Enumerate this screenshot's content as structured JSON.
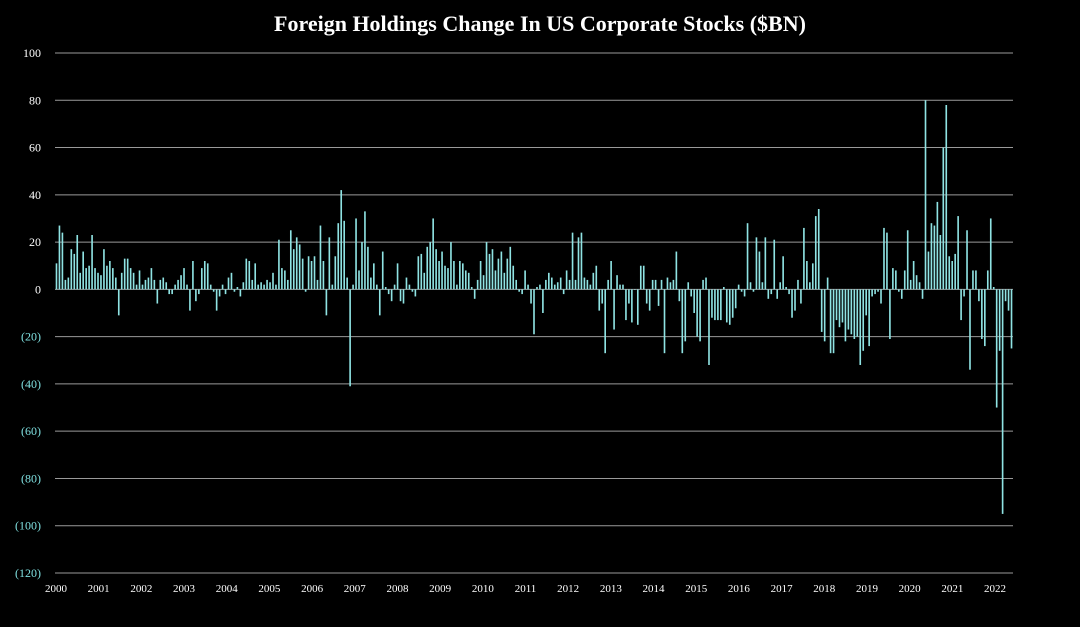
{
  "chart_data": {
    "type": "bar",
    "title": "Foreign Holdings Change In US Corporate Stocks ($BN)",
    "xlabel": "",
    "ylabel": "",
    "ylim": [
      -120,
      100
    ],
    "grid": true,
    "legend": "none",
    "colors": {
      "background": "#000000",
      "bar": "#8fe3e3",
      "grid": "#9a9a9a",
      "positive_tick": "#ffffff",
      "negative_tick": "#7fe0e0"
    },
    "y_ticks": [
      {
        "value": 100,
        "label": "100"
      },
      {
        "value": 80,
        "label": "80"
      },
      {
        "value": 60,
        "label": "60"
      },
      {
        "value": 40,
        "label": "40"
      },
      {
        "value": 20,
        "label": "20"
      },
      {
        "value": 0,
        "label": "0"
      },
      {
        "value": -20,
        "label": "(20)"
      },
      {
        "value": -40,
        "label": "(40)"
      },
      {
        "value": -60,
        "label": "(60)"
      },
      {
        "value": -80,
        "label": "(80)"
      },
      {
        "value": -100,
        "label": "(100)"
      },
      {
        "value": -120,
        "label": "(120)"
      }
    ],
    "x_ticks": [
      "2000",
      "2001",
      "2002",
      "2003",
      "2004",
      "2005",
      "2006",
      "2007",
      "2008",
      "2009",
      "2010",
      "2011",
      "2012",
      "2013",
      "2014",
      "2015",
      "2016",
      "2017",
      "2018",
      "2019",
      "2020",
      "2021",
      "2022"
    ],
    "x_start": "2000-01",
    "frequency": "monthly",
    "values": [
      11,
      27,
      24,
      4,
      5,
      17,
      15,
      23,
      7,
      16,
      9,
      10,
      23,
      9,
      7,
      6,
      17,
      10,
      12,
      9,
      5,
      -11,
      7,
      13,
      13,
      9,
      7,
      2,
      8,
      2,
      4,
      5,
      9,
      4,
      -6,
      4,
      5,
      3,
      -2,
      -2,
      2,
      4,
      6,
      9,
      2,
      -9,
      12,
      -5,
      -2,
      9,
      12,
      11,
      2,
      -1,
      -9,
      -3,
      2,
      -2,
      5,
      7,
      -1,
      1,
      -3,
      3,
      13,
      12,
      4,
      11,
      2,
      3,
      2,
      4,
      3,
      7,
      2,
      21,
      9,
      8,
      4,
      25,
      17,
      22,
      19,
      13,
      -1,
      14,
      12,
      14,
      4,
      27,
      12,
      -11,
      22,
      2,
      14,
      28,
      42,
      29,
      5,
      -41,
      2,
      30,
      8,
      20,
      33,
      18,
      5,
      11,
      2,
      -11,
      16,
      1,
      -2,
      -5,
      2,
      11,
      -5,
      -6,
      5,
      2,
      -1,
      -3,
      14,
      15,
      7,
      18,
      20,
      30,
      17,
      12,
      16,
      10,
      9,
      20,
      12,
      2,
      12,
      11,
      8,
      7,
      1,
      -4,
      4,
      12,
      6,
      20,
      15,
      17,
      8,
      13,
      16,
      7,
      13,
      18,
      10,
      4,
      -1,
      -2,
      8,
      2,
      -6,
      -19,
      1,
      2,
      -10,
      4,
      7,
      5,
      2,
      3,
      5,
      -2,
      8,
      4,
      24,
      4,
      22,
      24,
      5,
      4,
      2,
      7,
      10,
      -9,
      -6,
      -27,
      4,
      12,
      -17,
      6,
      2,
      2,
      -13,
      -6,
      -14,
      0,
      -15,
      10,
      10,
      -6,
      -9,
      4,
      4,
      -7,
      4,
      -27,
      5,
      3,
      4,
      16,
      -5,
      -27,
      -22,
      3,
      -3,
      -10,
      -20,
      -22,
      4,
      5,
      -32,
      -12,
      -13,
      -13,
      -13,
      1,
      -14,
      -15,
      -12,
      -8,
      2,
      -1,
      -3,
      28,
      3,
      -1,
      22,
      16,
      3,
      22,
      -4,
      -2,
      21,
      -4,
      3,
      14,
      1,
      -2,
      -12,
      -9,
      4,
      -6,
      26,
      12,
      3,
      11,
      31,
      34,
      -18,
      -22,
      5,
      -27,
      -27,
      -13,
      -16,
      -14,
      -22,
      -17,
      -19,
      -21,
      -20,
      -32,
      -26,
      -11,
      -24,
      -3,
      -2,
      -1,
      -6,
      26,
      24,
      -21,
      9,
      8,
      -1,
      -4,
      8,
      25,
      4,
      12,
      6,
      3,
      -4,
      80,
      16,
      28,
      27,
      37,
      23,
      60,
      78,
      14,
      12,
      15,
      31,
      -13,
      -3,
      25,
      -34,
      8,
      8,
      -5,
      -21,
      -24,
      8,
      30,
      1,
      -50,
      -26,
      -95,
      -5,
      -9,
      -25
    ]
  }
}
